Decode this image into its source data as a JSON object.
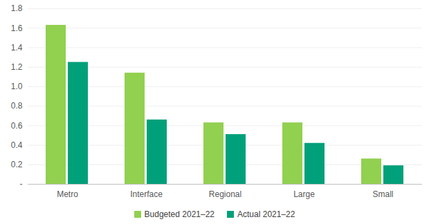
{
  "chart_data": {
    "type": "bar",
    "categories": [
      "Metro",
      "Interface",
      "Regional",
      "Large",
      "Small"
    ],
    "series": [
      {
        "name": "Budgeted 2021–22",
        "color": "#92d050",
        "values": [
          1.63,
          1.14,
          0.63,
          0.63,
          0.26
        ]
      },
      {
        "name": "Actual 2021–22",
        "color": "#00a07a",
        "values": [
          1.25,
          0.66,
          0.51,
          0.42,
          0.19
        ]
      }
    ],
    "ylim": [
      0,
      1.8
    ],
    "yticks": [
      {
        "value": 0,
        "label": "-"
      },
      0.2,
      0.4,
      0.6,
      0.8,
      {
        "value": 1,
        "label": "1.0"
      },
      1.2,
      1.4,
      1.6,
      1.8
    ],
    "grid": true,
    "legend": "bottom"
  }
}
